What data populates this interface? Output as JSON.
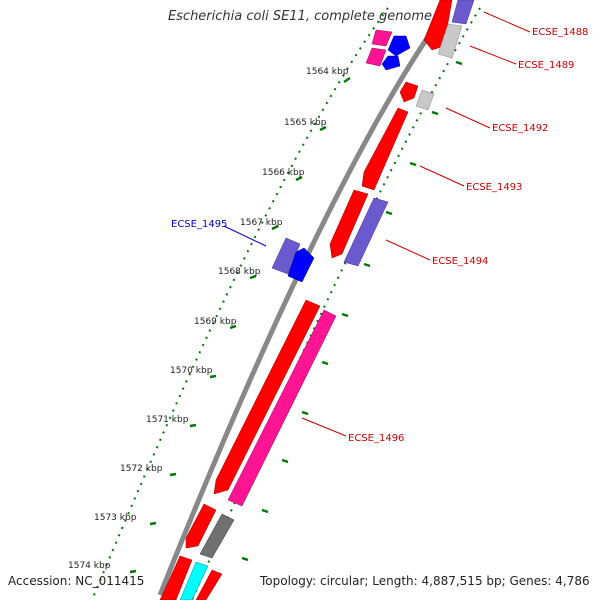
{
  "title": "Escherichia coli SE11, complete genome",
  "footer": {
    "accession": "Accession: NC_011415",
    "summary": "Topology: circular; Length: 4,887,515 bp; Genes: 4,786"
  },
  "ticks": [
    "1564 kbp",
    "1565 kbp",
    "1566 kbp",
    "1567 kbp",
    "1568 kbp",
    "1569 kbp",
    "1570 kbp",
    "1571 kbp",
    "1572 kbp",
    "1573 kbp",
    "1574 kbp"
  ],
  "gene_labels": {
    "ECSE_1488": "ECSE_1488",
    "ECSE_1489": "ECSE_1489",
    "ECSE_1492": "ECSE_1492",
    "ECSE_1493": "ECSE_1493",
    "ECSE_1494": "ECSE_1494",
    "ECSE_1495": "ECSE_1495",
    "ECSE_1496": "ECSE_1496"
  },
  "colors": {
    "red": "#ff0000",
    "pink": "#ff1493",
    "magenta": "#ff00aa",
    "blue": "#0000ff",
    "slate": "#6a5acd",
    "gray": "#707070",
    "lightgray": "#c8c8c8",
    "cyan": "#00ffff",
    "tick_green": "#007700"
  }
}
